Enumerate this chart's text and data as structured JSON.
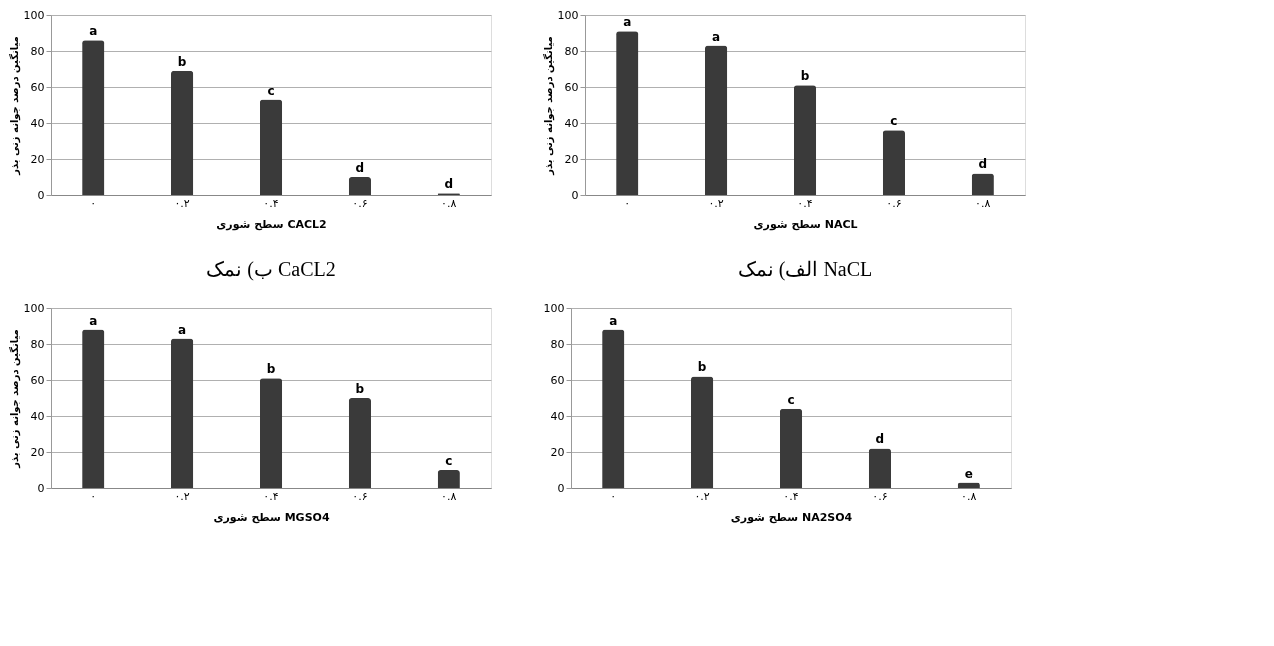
{
  "chart_data": [
    {
      "type": "bar",
      "categories": [
        "۰",
        "۰.۲",
        "۰.۴",
        "۰.۶",
        "۰.۸"
      ],
      "values": [
        86,
        69,
        53,
        10,
        1
      ],
      "color": "#3a3a3a",
      "ylim": [
        0,
        100
      ],
      "yticks": [
        0,
        20,
        40,
        60,
        80,
        100
      ],
      "grid": "y",
      "xlabel": "سطح شوری CACL2",
      "ylabel": "میانگین درصد جوانه زنی بذر",
      "annotations": [
        {
          "text": "a",
          "x": "۰",
          "y": 86
        },
        {
          "text": "b",
          "x": "۰.۲",
          "y": 69
        },
        {
          "text": "c",
          "x": "۰.۴",
          "y": 53
        },
        {
          "text": "d",
          "x": "۰.۶",
          "y": 10
        },
        {
          "text": "d",
          "x": "۰.۸",
          "y": 1
        },
        "ب) نمک CaCL2"
      ]
    },
    {
      "type": "bar",
      "categories": [
        "۰",
        "۰.۲",
        "۰.۴",
        "۰.۶",
        "۰.۸"
      ],
      "values": [
        91,
        83,
        61,
        36,
        12
      ],
      "color": "#3a3a3a",
      "ylim": [
        0,
        100
      ],
      "yticks": [
        0,
        20,
        40,
        60,
        80,
        100
      ],
      "grid": "y",
      "xlabel": "سطح شوری NACL",
      "ylabel": "میانگین درصد جوانه زنی بذر",
      "annotations": [
        {
          "text": "a",
          "x": "۰",
          "y": 91
        },
        {
          "text": "a",
          "x": "۰.۲",
          "y": 83
        },
        {
          "text": "b",
          "x": "۰.۴",
          "y": 61
        },
        {
          "text": "c",
          "x": "۰.۶",
          "y": 36
        },
        {
          "text": "d",
          "x": "۰.۸",
          "y": 12
        },
        "الف) نمک NaCL"
      ]
    },
    {
      "type": "bar",
      "categories": [
        "۰",
        "۰.۲",
        "۰.۴",
        "۰.۶",
        "۰.۸"
      ],
      "values": [
        88,
        83,
        61,
        50,
        10
      ],
      "color": "#3a3a3a",
      "ylim": [
        0,
        100
      ],
      "yticks": [
        0,
        20,
        40,
        60,
        80,
        100
      ],
      "grid": "y",
      "xlabel": "سطح شوری MGSO4",
      "ylabel": "میانگین درصد جوانه زنی بذر",
      "annotations": [
        {
          "text": "a",
          "x": "۰",
          "y": 88
        },
        {
          "text": "a",
          "x": "۰.۲",
          "y": 83
        },
        {
          "text": "b",
          "x": "۰.۴",
          "y": 61
        },
        {
          "text": "b",
          "x": "۰.۶",
          "y": 50
        },
        {
          "text": "c",
          "x": "۰.۸",
          "y": 10
        }
      ]
    },
    {
      "type": "bar",
      "categories": [
        "۰",
        "۰.۲",
        "۰.۴",
        "۰.۶",
        "۰.۸"
      ],
      "values": [
        88,
        62,
        44,
        22,
        3
      ],
      "color": "#3a3a3a",
      "ylim": [
        0,
        100
      ],
      "yticks": [
        0,
        20,
        40,
        60,
        80,
        100
      ],
      "grid": "y",
      "xlabel": "سطح شوری NA2SO4",
      "annotations": [
        {
          "text": "a",
          "x": "۰",
          "y": 88
        },
        {
          "text": "b",
          "x": "۰.۲",
          "y": 62
        },
        {
          "text": "c",
          "x": "۰.۴",
          "y": 44
        },
        {
          "text": "d",
          "x": "۰.۶",
          "y": 22
        },
        {
          "text": "e",
          "x": "۰.۸",
          "y": 3
        }
      ]
    }
  ]
}
